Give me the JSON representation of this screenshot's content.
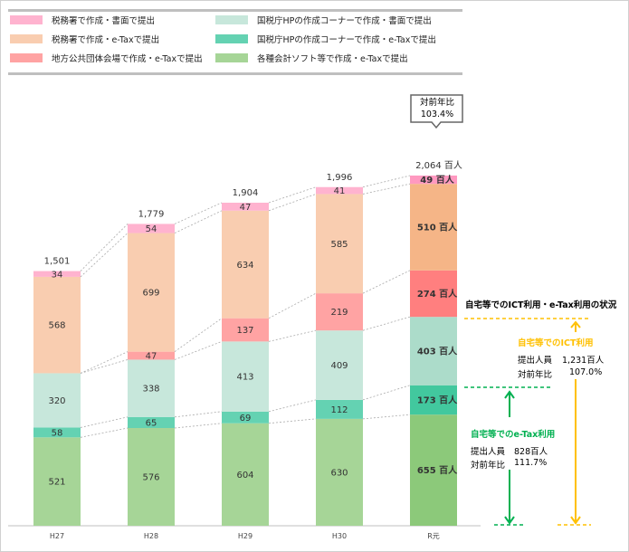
{
  "chart_data": {
    "type": "bar",
    "stacked": true,
    "categories": [
      "H27",
      "H28",
      "H29",
      "H30",
      "R元"
    ],
    "series": [
      {
        "name": "各種会計ソフト等で作成・e-Taxで提出",
        "color": "#a6d597",
        "highlight": "#8cc97a",
        "values": [
          521,
          576,
          604,
          630,
          655
        ]
      },
      {
        "name": "国税庁HPの作成コーナーで作成・e-Taxで提出",
        "color": "#64d2b2",
        "highlight": "#42c89e",
        "values": [
          58,
          65,
          69,
          112,
          173
        ]
      },
      {
        "name": "国税庁HPの作成コーナーで作成・書面で提出",
        "color": "#c7e7db",
        "highlight": "#acdcca",
        "values": [
          320,
          338,
          413,
          409,
          403
        ]
      },
      {
        "name": "地方公共団体会場で作成・e-Taxで提出",
        "color": "#ffa3a3",
        "highlight": "#ff7f7f",
        "values": [
          0,
          47,
          137,
          219,
          274
        ]
      },
      {
        "name": "税務署で作成・e-Taxで提出",
        "color": "#f9cdb0",
        "highlight": "#f5b587",
        "values": [
          568,
          699,
          634,
          585,
          510
        ]
      },
      {
        "name": "税務署で作成・書面で提出",
        "color": "#ffb3cf",
        "highlight": "#ff99c0",
        "values": [
          34,
          54,
          47,
          41,
          49
        ]
      }
    ],
    "totals": [
      "1,501",
      "1,779",
      "1,904",
      "1,996",
      "2,064 百人"
    ],
    "unit_suffix": " 百人",
    "ylim": [
      0,
      2064
    ],
    "legend_order": [
      5,
      2,
      4,
      1,
      3,
      0
    ]
  },
  "callout": {
    "line1": "対前年比",
    "line2": "103.4%"
  },
  "annotation": {
    "title": "自宅等でのICT利用・e-Tax利用の状況",
    "ict": {
      "label": "自宅等でのICT利用",
      "count_label": "提出人員",
      "count": "1,231百人",
      "ratio_label": "対前年比",
      "ratio": "107.0%",
      "color": "#ffc000"
    },
    "etax": {
      "label": "自宅等でのe-Tax利用",
      "count_label": "提出人員",
      "count": "828百人",
      "ratio_label": "対前年比",
      "ratio": "111.7%",
      "color": "#00b050"
    }
  }
}
